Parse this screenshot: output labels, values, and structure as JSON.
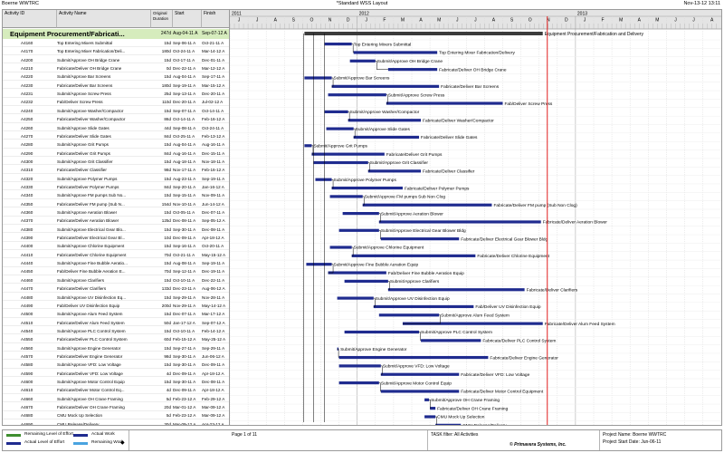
{
  "header": {
    "left": "Boerne WWTRC",
    "center": "*Standard WSS Layout",
    "right": "Nov-13-12 13:11"
  },
  "columns": {
    "id": "Activity ID",
    "name": "Activity Name",
    "duration": "Original Duration",
    "start": "Start",
    "finish": "Finish"
  },
  "summary": {
    "name": "Equipment Procurement/Fabricati...",
    "duration": "247d",
    "start": "Aug-04-11 A",
    "finish": "Sep-07-12 A",
    "bar_label": "Equipment Procurement/Fabrication and Delivery"
  },
  "timeline": {
    "years": [
      "2011",
      "2012",
      "2013"
    ],
    "months": [
      "J",
      "J",
      "A",
      "S",
      "O",
      "N",
      "D",
      "J",
      "F",
      "M",
      "A",
      "M",
      "J",
      "J",
      "A",
      "S",
      "O",
      "N",
      "D",
      "J",
      "F",
      "M",
      "A",
      "M",
      "J",
      "J",
      "A"
    ]
  },
  "activities": [
    {
      "id": "A4160",
      "name": "Top Entering Mixers Submittal",
      "dur": "15d",
      "start": "Sep-06-11 A",
      "finish": "Oct-21-11 A",
      "s": 5.2,
      "f": 6.7,
      "label": "Top Entering Mixers Submittal",
      "type": "sub"
    },
    {
      "id": "A4170",
      "name": "Top Entering Mixer Fabrication/Deli...",
      "dur": "180d",
      "start": "Oct-24-11 A",
      "finish": "Mar-14-12 A",
      "s": 6.8,
      "f": 11.4,
      "label": "Top Entering Mixer Fabrication/Delivery",
      "type": "fab"
    },
    {
      "id": "A4200",
      "name": "Submit/Approve OH Bridge Crane",
      "dur": "15d",
      "start": "Oct-17-11 A",
      "finish": "Dec-01-11 A",
      "s": 6.6,
      "f": 8.0,
      "label": "Submit/Approve OH Bridge Crane",
      "type": "sub"
    },
    {
      "id": "A4210",
      "name": "Fabricate/Deliver OH Bridge Crane",
      "dur": "0d",
      "start": "Dec-22-11 A",
      "finish": "Mar-12-12 A",
      "s": 8.7,
      "f": 11.4,
      "label": "Fabricate/Deliver OH Bridge Crane",
      "type": "fab"
    },
    {
      "id": "A4220",
      "name": "Submit/Approve Bar Screens",
      "dur": "15d",
      "start": "Aug-04-11 A",
      "finish": "Sep-17-11 A",
      "s": 4.1,
      "f": 5.6,
      "label": "Submit/Approve Bar Screens",
      "type": "sub"
    },
    {
      "id": "A4230",
      "name": "Fabricate/Deliver Bar Screens",
      "dur": "180d",
      "start": "Sep-19-11 A",
      "finish": "Mar-15-12 A",
      "s": 5.6,
      "f": 11.5,
      "label": "Fabricate/Deliver Bar Screens",
      "type": "fab"
    },
    {
      "id": "A4231",
      "name": "Submit/Approve Screw Press",
      "dur": "25d",
      "start": "Sep-13-11 A",
      "finish": "Dec-20-11 A",
      "s": 5.4,
      "f": 8.6,
      "label": "Submit/Approve Screw Press",
      "type": "sub"
    },
    {
      "id": "A4232",
      "name": "Fab/Deliver Screw Press",
      "dur": "110d",
      "start": "Dec-20-11 A",
      "finish": "Jul-02-12 A",
      "s": 8.6,
      "f": 15.0,
      "label": "Fab/Deliver Screw Press",
      "type": "fab"
    },
    {
      "id": "A4240",
      "name": "Submit/Approve Washer/Compactor",
      "dur": "15d",
      "start": "Sep-07-11 A",
      "finish": "Oct-14-11 A",
      "s": 5.2,
      "f": 6.5,
      "label": "Submit/Approve Washer/Compactor",
      "type": "sub"
    },
    {
      "id": "A4250",
      "name": "Fabricate/Deliver Washer/Compactor",
      "dur": "86d",
      "start": "Oct-14-11 A",
      "finish": "Feb-16-12 A",
      "s": 6.5,
      "f": 10.5,
      "label": "Fabricate/Deliver Washer/Compactor",
      "type": "fab"
    },
    {
      "id": "A4260",
      "name": "Submit/Approve Slide Gates",
      "dur": "44d",
      "start": "Sep-08-11 A",
      "finish": "Oct-24-11 A",
      "s": 5.3,
      "f": 6.8,
      "label": "Submit/Approve Slide Gates",
      "type": "sub"
    },
    {
      "id": "A4270",
      "name": "Fabricate/Deliver Slide Gates",
      "dur": "84d",
      "start": "Oct-25-11 A",
      "finish": "Feb-13-12 A",
      "s": 6.8,
      "f": 10.4,
      "label": "Fabricate/Deliver Slide Gates",
      "type": "fab"
    },
    {
      "id": "A4280",
      "name": "Submit/Approve Grit Pumps",
      "dur": "15d",
      "start": "Aug-04-11 A",
      "finish": "Aug-16-11 A",
      "s": 4.1,
      "f": 4.5,
      "label": "Submit/Approve Grit Pumps",
      "type": "sub"
    },
    {
      "id": "A4290",
      "name": "Fabricate/Deliver Grit Pumps",
      "dur": "84d",
      "start": "Aug-16-11 A",
      "finish": "Dec-15-11 A",
      "s": 4.5,
      "f": 8.5,
      "label": "Fabricate/Deliver Grit Pumps",
      "type": "fab"
    },
    {
      "id": "A4300",
      "name": "Submit/Approve Grit Classifier",
      "dur": "15d",
      "start": "Aug-18-11 A",
      "finish": "Nov-18-11 A",
      "s": 4.6,
      "f": 7.6,
      "label": "Submit/Approve Grit Classifier",
      "type": "sub"
    },
    {
      "id": "A4310",
      "name": "Fabricate/Deliver Classifier",
      "dur": "98d",
      "start": "Nov-17-11 A",
      "finish": "Feb-16-12 A",
      "s": 7.6,
      "f": 10.5,
      "label": "Fabricate/Deliver Classifier",
      "type": "fab"
    },
    {
      "id": "A4320",
      "name": "Submit/Approve Polymer Pumps",
      "dur": "15d",
      "start": "Aug-23-11 A",
      "finish": "Sep-19-11 A",
      "s": 4.7,
      "f": 5.6,
      "label": "Submit/Approve Polymer Pumps",
      "type": "sub"
    },
    {
      "id": "A4330",
      "name": "Fabricate/Deliver Polymer Pumps",
      "dur": "84d",
      "start": "Sep-20-11 A",
      "finish": "Jan-16-12 A",
      "s": 5.6,
      "f": 9.5,
      "label": "Fabricate/Deliver Polymer Pumps",
      "type": "fab"
    },
    {
      "id": "A4340",
      "name": "Submit/Approve FM pumps Sub No...",
      "dur": "15d",
      "start": "Sep-15-11 A",
      "finish": "Nov-09-11 A",
      "s": 5.5,
      "f": 7.3,
      "label": "Submit/Approve FM pumps Sub Non Clog",
      "type": "sub"
    },
    {
      "id": "A4350",
      "name": "Fabricate/Deliver FM pump (Sub N...",
      "dur": "154d",
      "start": "Nov-10-11 A",
      "finish": "Jun-14-12 A",
      "s": 7.3,
      "f": 14.4,
      "label": "Fabricate/Deliver FM pump (Sub Non Clog)",
      "type": "fab"
    },
    {
      "id": "A4360",
      "name": "Submit/Approve Aeration Blower",
      "dur": "15d",
      "start": "Oct-05-11 A",
      "finish": "Dec-07-11 A",
      "s": 6.2,
      "f": 8.2,
      "label": "Submit/Approve Aeration Blower",
      "type": "sub"
    },
    {
      "id": "A4370",
      "name": "Fabricate/Deliver Aeration Blower",
      "dur": "125d",
      "start": "Dec-08-11 A",
      "finish": "Sep-05-12 A",
      "s": 8.2,
      "f": 17.1,
      "label": "Fabricate/Deliver Aeration Blower",
      "type": "fab"
    },
    {
      "id": "A4380",
      "name": "Submit/Approve Electrical Gear Blo...",
      "dur": "15d",
      "start": "Sep-30-11 A",
      "finish": "Dec-08-11 A",
      "s": 6.0,
      "f": 8.2,
      "label": "Submit/Approve Electrical Gear Blower Bldg",
      "type": "sub"
    },
    {
      "id": "A4390",
      "name": "Fabricate/Deliver Electrical Gear Bl...",
      "dur": "10d",
      "start": "Dec-09-11 A",
      "finish": "Apr-18-12 A",
      "s": 8.3,
      "f": 12.6,
      "label": "Fabricate/Deliver Electrical Gear Blower Bldg",
      "type": "fab"
    },
    {
      "id": "A4400",
      "name": "Submit/Approve Chlorine Equipment",
      "dur": "15d",
      "start": "Sep-16-11 A",
      "finish": "Oct-20-11 A",
      "s": 5.5,
      "f": 6.7,
      "label": "Submit/Approve Chlorine Equipment",
      "type": "sub"
    },
    {
      "id": "A4410",
      "name": "Fabricate/Deliver Chlorine Equipment",
      "dur": "70d",
      "start": "Oct-21-11 A",
      "finish": "May-15-12 A",
      "s": 6.7,
      "f": 13.5,
      "label": "Fabricate/Deliver Chlorine Equipment",
      "type": "fab"
    },
    {
      "id": "A4440",
      "name": "Submit/Approve Fine Bubble Aeratio...",
      "dur": "15d",
      "start": "Aug-08-11 A",
      "finish": "Sep-19-11 A",
      "s": 4.2,
      "f": 5.6,
      "label": "Submit/Approve Fine Bubble Aeration Equip",
      "type": "sub"
    },
    {
      "id": "A4450",
      "name": "Fab/Deliver Fine Bubble Aeration E...",
      "dur": "70d",
      "start": "Sep-12-11 A",
      "finish": "Dec-19-11 A",
      "s": 5.4,
      "f": 8.6,
      "label": "Fab/Deliver Fine Bubble Aeration Equip",
      "type": "fab"
    },
    {
      "id": "A4460",
      "name": "Submit/Approve Clarifiers",
      "dur": "15d",
      "start": "Oct-10-11 A",
      "finish": "Dec-22-11 A",
      "s": 6.3,
      "f": 8.7,
      "label": "Submit/Approve Clarifiers",
      "type": "sub"
    },
    {
      "id": "A4470",
      "name": "Fabricate/Deliver Clarifiers",
      "dur": "133d",
      "start": "Dec-23-11 A",
      "finish": "Aug-06-12 A",
      "s": 8.7,
      "f": 16.2,
      "label": "Fabricate/Deliver Clarifiers",
      "type": "fab"
    },
    {
      "id": "A4480",
      "name": "Submit/Approve UV Disinfection Eq...",
      "dur": "15d",
      "start": "Sep-29-11 A",
      "finish": "Nov-28-11 A",
      "s": 5.9,
      "f": 7.9,
      "label": "Submit/Approve UV Disinfection Equip",
      "type": "sub"
    },
    {
      "id": "A4490",
      "name": "Fab/Deliver UV Disinfection Equip",
      "dur": "200d",
      "start": "Nov-29-11 A",
      "finish": "May-14-12 A",
      "s": 7.9,
      "f": 13.4,
      "label": "Fab/Deliver UV Disinfection Equip",
      "type": "fab"
    },
    {
      "id": "A4500",
      "name": "Submit/Approve Alum Feed System",
      "dur": "15d",
      "start": "Dec-07-11 A",
      "finish": "Mar-17-12 A",
      "s": 8.2,
      "f": 11.5,
      "label": "Submit/Approve Alum Feed System",
      "type": "sub"
    },
    {
      "id": "A4510",
      "name": "Fabricate/Deliver Alum Feed System",
      "dur": "50d",
      "start": "Jan-17-12 A",
      "finish": "Sep-07-12 A",
      "s": 9.5,
      "f": 17.2,
      "label": "Fabricate/Deliver Alum Feed System",
      "type": "fab"
    },
    {
      "id": "A4540",
      "name": "Submit/Approve PLC Control System",
      "dur": "15d",
      "start": "Oct-10-11 A",
      "finish": "Feb-14-12 A",
      "s": 6.3,
      "f": 10.4,
      "label": "Submit/Approve PLC Control System",
      "type": "sub"
    },
    {
      "id": "A4550",
      "name": "Fabricate/Deliver PLC Control System",
      "dur": "60d",
      "start": "Feb-15-12 A",
      "finish": "May-25-12 A",
      "s": 10.5,
      "f": 13.8,
      "label": "Fabricate/Deliver PLC Control System",
      "type": "fab"
    },
    {
      "id": "A4560",
      "name": "Submit/Approve Engine Generator",
      "dur": "15d",
      "start": "Sep-27-11 A",
      "finish": "Sep-29-11 A",
      "s": 5.9,
      "f": 5.9,
      "label": "Submit/Approve Engine Generator",
      "type": "sub"
    },
    {
      "id": "A4570",
      "name": "Fabricate/Deliver Engine Generator",
      "dur": "98d",
      "start": "Sep-30-11 A",
      "finish": "Jun-06-12 A",
      "s": 6.0,
      "f": 14.2,
      "label": "Fabricate/Deliver Engine Generator",
      "type": "fab"
    },
    {
      "id": "A4580",
      "name": "Submit/Approve VFD: Low Voltage",
      "dur": "15d",
      "start": "Sep-30-11 A",
      "finish": "Dec-09-11 A",
      "s": 6.0,
      "f": 8.3,
      "label": "Submit/Approve VFD: Low Voltage",
      "type": "sub"
    },
    {
      "id": "A4590",
      "name": "Fabricate/Deliver VFD: Low Voltage",
      "dur": "4d",
      "start": "Dec-09-11 A",
      "finish": "Apr-18-12 A",
      "s": 8.3,
      "f": 12.6,
      "label": "Fabricate/Deliver VFD: Low Voltage",
      "type": "fab"
    },
    {
      "id": "A4600",
      "name": "Submit/Approve Motor Control Equip",
      "dur": "15d",
      "start": "Sep-30-11 A",
      "finish": "Dec-08-11 A",
      "s": 6.0,
      "f": 8.2,
      "label": "Submit/Approve Motor Control Equip",
      "type": "sub"
    },
    {
      "id": "A4610",
      "name": "Fabricate/Deliver Motor Control Eq...",
      "dur": "4d",
      "start": "Dec-09-11 A",
      "finish": "Apr-18-12 A",
      "s": 8.3,
      "f": 12.6,
      "label": "Fabricate/Deliver Motor Control Equipment",
      "type": "fab"
    },
    {
      "id": "A4660",
      "name": "Submit/Approve OH Crane Framing",
      "dur": "5d",
      "start": "Feb-23-12 A",
      "finish": "Feb-29-12 A",
      "s": 10.7,
      "f": 10.95,
      "label": "Submit/Approve OH Crane Framing",
      "type": "sub"
    },
    {
      "id": "A4670",
      "name": "Fabricate/Deliver OH Crane Framing",
      "dur": "20d",
      "start": "Mar-01-12 A",
      "finish": "Mar-09-12 A",
      "s": 11.0,
      "f": 11.3,
      "label": "Fabricate/Deliver OH Crane Framing",
      "type": "fab"
    },
    {
      "id": "A4680",
      "name": "CMU Mock Up Selection",
      "dur": "5d",
      "start": "Feb-23-12 A",
      "finish": "Mar-09-12 A",
      "s": 10.7,
      "f": 11.3,
      "label": "CMU Mock Up Selection",
      "type": "sub"
    },
    {
      "id": "A4690",
      "name": "CMU Release/Delivery",
      "dur": "30d",
      "start": "Mar-09-12 A",
      "finish": "Apr-23-12 A",
      "s": 11.3,
      "f": 12.7,
      "label": "CMU Release/Delivery",
      "type": "fab"
    }
  ],
  "data_date_month": 17.45,
  "footer": {
    "legend": {
      "remaining_loe": "Remaining Level of Effort",
      "actual_loe": "Actual Level of Effort",
      "actual_work": "Actual Work",
      "remaining_work": "Remaining Work",
      "milestone": "◆"
    },
    "page": "Page 1 of 11",
    "filter": "TASK filter: All Activities",
    "copyright": "© Primavera Systems, Inc.",
    "project_name": "Project Name: Boerne WWTRC",
    "project_start": "Project Start Date: Jun-06-11"
  },
  "colors": {
    "actual_bar": "#1f2b8f",
    "remaining_bar": "#4aa3e0",
    "loe_remaining": "#3e8e2f",
    "summary_fill": "#d6ecbd",
    "data_date": "#e02020"
  }
}
